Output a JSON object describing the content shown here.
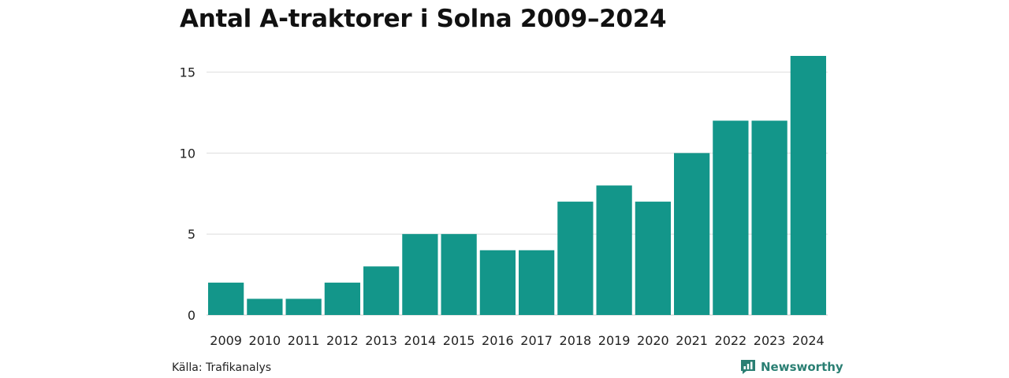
{
  "title": "Antal A-traktorer i Solna 2009–2024",
  "source": "Källa: Trafikanalys",
  "logo_text": "Newsworthy",
  "colors": {
    "bar": "#13968A",
    "grid": "#DDDDDD",
    "logo": "#2A7F73"
  },
  "icons": {
    "logo": "speech-bubble-chart-icon"
  },
  "chart_data": {
    "type": "bar",
    "categories": [
      "2009",
      "2010",
      "2011",
      "2012",
      "2013",
      "2014",
      "2015",
      "2016",
      "2017",
      "2018",
      "2019",
      "2020",
      "2021",
      "2022",
      "2023",
      "2024"
    ],
    "values": [
      2,
      1,
      1,
      2,
      3,
      5,
      5,
      4,
      4,
      7,
      8,
      7,
      10,
      12,
      12,
      16
    ],
    "title": "Antal A-traktorer i Solna 2009–2024",
    "xlabel": "",
    "ylabel": "",
    "ylim": [
      0,
      16
    ],
    "yticks": [
      0,
      5,
      10,
      15
    ],
    "grid": true,
    "legend": "none"
  }
}
